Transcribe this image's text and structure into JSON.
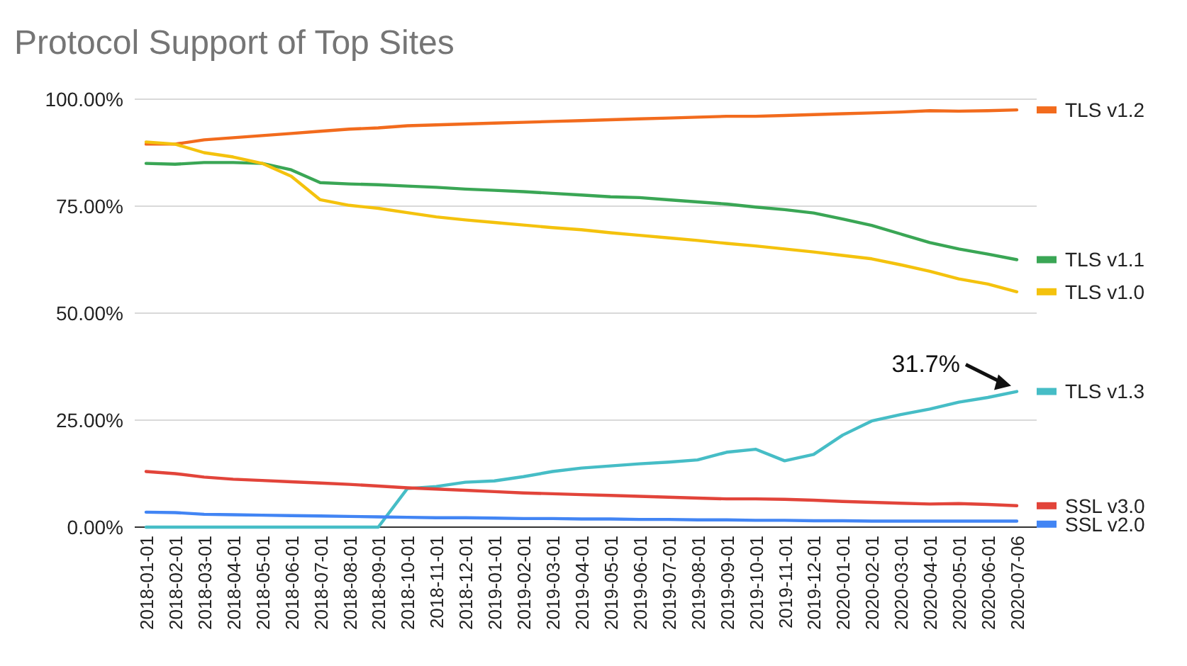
{
  "chart_data": {
    "type": "line",
    "title": "Protocol Support of Top Sites",
    "categories": [
      "2018-01-01",
      "2018-02-01",
      "2018-03-01",
      "2018-04-01",
      "2018-05-01",
      "2018-06-01",
      "2018-07-01",
      "2018-08-01",
      "2018-09-01",
      "2018-10-01",
      "2018-11-01",
      "2018-12-01",
      "2019-01-01",
      "2019-02-01",
      "2019-03-01",
      "2019-04-01",
      "2019-05-01",
      "2019-06-01",
      "2019-07-01",
      "2019-08-01",
      "2019-09-01",
      "2019-10-01",
      "2019-11-01",
      "2019-12-01",
      "2020-01-01",
      "2020-02-01",
      "2020-03-01",
      "2020-04-01",
      "2020-05-01",
      "2020-06-01",
      "2020-07-06"
    ],
    "series": [
      {
        "name": "TLS v1.2",
        "color": "#f26b1d",
        "values": [
          89.5,
          89.5,
          90.5,
          91,
          91.5,
          92,
          92.5,
          93,
          93.3,
          93.8,
          94,
          94.2,
          94.4,
          94.6,
          94.8,
          95,
          95.2,
          95.4,
          95.6,
          95.8,
          96,
          96,
          96.2,
          96.4,
          96.6,
          96.8,
          97,
          97.3,
          97.2,
          97.3,
          97.5
        ]
      },
      {
        "name": "TLS v1.1",
        "color": "#3aa655",
        "values": [
          85,
          84.8,
          85.2,
          85.2,
          85,
          83.5,
          80.5,
          80.2,
          80,
          79.7,
          79.4,
          79,
          78.7,
          78.4,
          78,
          77.6,
          77.2,
          77,
          76.5,
          76,
          75.5,
          74.8,
          74.2,
          73.4,
          72,
          70.5,
          68.5,
          66.5,
          65,
          63.8,
          62.5
        ]
      },
      {
        "name": "TLS v1.0",
        "color": "#f4c20d",
        "values": [
          90,
          89.5,
          87.5,
          86.5,
          85,
          82,
          76.5,
          75.2,
          74.5,
          73.5,
          72.5,
          71.8,
          71.2,
          70.6,
          70,
          69.5,
          68.8,
          68.2,
          67.6,
          67,
          66.3,
          65.7,
          65,
          64.3,
          63.5,
          62.7,
          61.3,
          59.8,
          58,
          56.8,
          55
        ]
      },
      {
        "name": "TLS v1.3",
        "color": "#46bdc6",
        "values": [
          0,
          0,
          0,
          0,
          0,
          0,
          0,
          0,
          0,
          9,
          9.5,
          10.5,
          10.8,
          11.8,
          13,
          13.8,
          14.3,
          14.8,
          15.2,
          15.7,
          17.5,
          18.2,
          15.5,
          17,
          21.5,
          24.8,
          26.3,
          27.6,
          29.2,
          30.3,
          31.7
        ]
      },
      {
        "name": "SSL v3.0",
        "color": "#e2443a",
        "values": [
          13,
          12.5,
          11.7,
          11.2,
          10.9,
          10.6,
          10.3,
          10,
          9.6,
          9.2,
          8.9,
          8.6,
          8.3,
          8,
          7.8,
          7.6,
          7.4,
          7.2,
          7,
          6.8,
          6.6,
          6.6,
          6.5,
          6.3,
          6,
          5.8,
          5.6,
          5.4,
          5.5,
          5.3,
          5
        ]
      },
      {
        "name": "SSL v2.0",
        "color": "#4285f4",
        "values": [
          3.5,
          3.4,
          3,
          2.9,
          2.8,
          2.7,
          2.6,
          2.5,
          2.4,
          2.3,
          2.2,
          2.2,
          2.1,
          2,
          2,
          1.9,
          1.9,
          1.8,
          1.8,
          1.7,
          1.7,
          1.6,
          1.6,
          1.5,
          1.5,
          1.4,
          1.4,
          1.4,
          1.4,
          1.4,
          1.4
        ]
      }
    ],
    "ylim": [
      0,
      100
    ],
    "yticks": [
      {
        "value": 0,
        "label": "0.00%"
      },
      {
        "value": 25,
        "label": "25.00%"
      },
      {
        "value": 50,
        "label": "50.00%"
      },
      {
        "value": 75,
        "label": "75.00%"
      },
      {
        "value": 100,
        "label": "100.00%"
      }
    ],
    "grid": "y",
    "legend": "right",
    "marker": "none",
    "line_style": "solid",
    "annotations": [
      {
        "text": "31.7%",
        "x": "2020-07-06",
        "y": 31.7
      }
    ]
  }
}
